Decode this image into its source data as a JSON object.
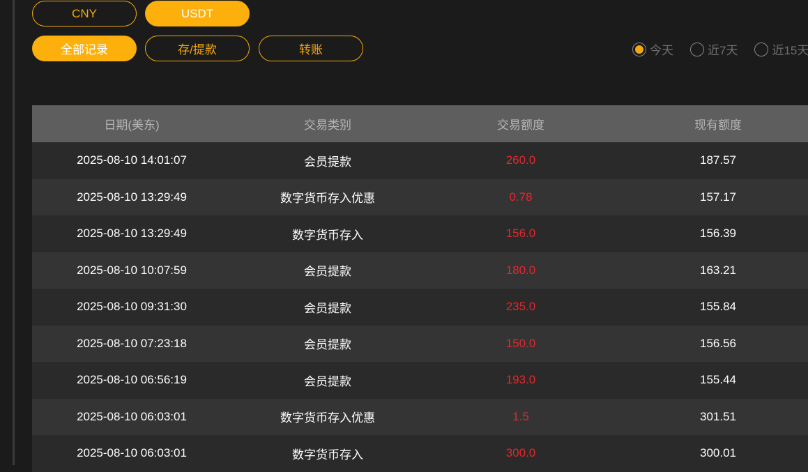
{
  "currency_tabs": [
    {
      "label": "CNY",
      "active": false
    },
    {
      "label": "USDT",
      "active": true
    }
  ],
  "record_tabs": [
    {
      "label": "全部记录",
      "active": true
    },
    {
      "label": "存/提款",
      "active": false
    },
    {
      "label": "转账",
      "active": false
    }
  ],
  "date_filters": [
    {
      "label": "今天",
      "selected": true
    },
    {
      "label": "近7天",
      "selected": false
    },
    {
      "label": "近15天",
      "selected": false
    }
  ],
  "table": {
    "headers": [
      "日期(美东)",
      "交易类别",
      "交易额度",
      "现有额度"
    ],
    "rows": [
      [
        "2025-08-10 14:01:07",
        "会员提款",
        "260.0",
        "187.57"
      ],
      [
        "2025-08-10 13:29:49",
        "数字货币存入优惠",
        "0.78",
        "157.17"
      ],
      [
        "2025-08-10 13:29:49",
        "数字货币存入",
        "156.0",
        "156.39"
      ],
      [
        "2025-08-10 10:07:59",
        "会员提款",
        "180.0",
        "163.21"
      ],
      [
        "2025-08-10 09:31:30",
        "会员提款",
        "235.0",
        "155.84"
      ],
      [
        "2025-08-10 07:23:18",
        "会员提款",
        "150.0",
        "156.56"
      ],
      [
        "2025-08-10 06:56:19",
        "会员提款",
        "193.0",
        "155.44"
      ],
      [
        "2025-08-10 06:03:01",
        "数字货币存入优惠",
        "1.5",
        "301.51"
      ],
      [
        "2025-08-10 06:03:01",
        "数字货币存入",
        "300.0",
        "300.01"
      ]
    ]
  },
  "colors": {
    "accent": "#fdb00c",
    "amount": "#e8262b"
  }
}
